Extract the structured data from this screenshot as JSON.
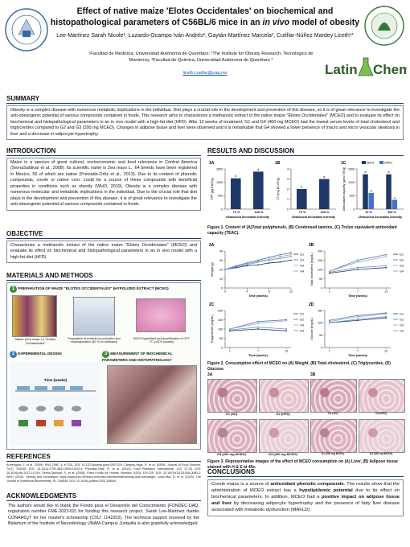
{
  "header": {
    "title_line1": "Effect of native maize 'Elotes Occidentales' on biochemical and",
    "title_line2_a": "histopathological parameters of C56BL/6 mice in an ",
    "title_line2_b": "in vivo",
    "title_line2_c": " model of obesity",
    "authors": "Lee-Martínez Sarah Nicole¹, Luzardo-Ocampo Iván Andrés², Gaytán-Martínez Marcela³, Cuéllar-Núñez Mardey Liceth¹*",
    "affiliations": "¹Facultad de Medicina, Universidad Autónoma de Querétaro; ²The Institute for Obesity Research, Tecnológico de Monterrey, ³Facultad de Química, Universidad Autónoma de Querétaro *",
    "email": "liceth.cuellar@uaq.mx",
    "logo_text": [
      "Latin",
      "Chem"
    ]
  },
  "summary": {
    "heading": "SUMMARY",
    "text": "Obesity is a complex disease with numerous metabolic implications in the individual. Diet plays a crucial role in the development and prevention of this disease, so it is of great relevance to investigate the anti-obesogenic potential of various compounds contained in foods. This research aims to characterize a methanolic extract of the native maize \"Elotes Occidentales\" (MCEO) and to evaluate its effect on biochemical and histopathological parameters in an in vivo model with a high-fat diet (HFD). After 12 weeks of treatment, G1 and G4 (400 mg MCEO) had the lowest serum levels of total cholesterol and triglycerides compared to G2 and G3 (200 mg MCEO). Changes in adipose tissue and liver were observed and it is remarkable that G4 showed a lower presence of macro and micro vesicular steatosis in liver and a decrease in adipocyte hypertrophy."
  },
  "introduction": {
    "heading": "INTRODUCTION",
    "text": "Maize is a species of great cultural, socioeconomic and food relevance in Central America (SernaSaldivar et al., 2008). Its scientific name is Zea mays L., 64 breeds have been registered in Mexico, 59 of which are native (Preciado-Ortíz et al., 2013). Due to its content of phenolic compounds, creole or native corn, could be a source of these compounds with beneficial properties in conditions such as obesity (WHO, 2019). Obesity is a complex disease with numerous molecular and metabolic implications in the individual. Due to the crucial role that diet plays in the development and prevention of this disease, it is of great relevance to investigate the anti-obesogenic potential of various compounds contained in foods."
  },
  "objective": {
    "heading": "OBJECTIVE",
    "text": "Characterize a methanolic extract of the native maize \"Elotes Occidentales\" (MCEO) and evaluate its effect on biochemical and histopathological parameters in an in vivo model with a high-fat diet (HFD)."
  },
  "methods": {
    "heading": "MATERIALS AND METHODS",
    "steps": [
      {
        "number": "1",
        "title": "PREPARATION OF MAIZE \"ELOTES OCCIDENTALES\" (HYPOLIZED EXTRACT (MCEO)"
      },
      {
        "number": "2",
        "title": "EXPERIMENTAL DESIGN"
      },
      {
        "number": "3",
        "title": "MEASUREMENT OF BIOCHEMICAL PARAMETERS AND HISTOPATHOLOGY"
      }
    ],
    "captions": [
      "Maize (Zea mays L.) \"Elotes Occidentales\"",
      "Preparation of extracts by sonication and rotaevaporation (80 % v/v methanol)",
      "MCEO lyophilized and quantification of CPT, TC y AOX capacity"
    ],
    "timeline_label": "Time (weeks)"
  },
  "references": {
    "heading": "REFERENCES",
    "text": "Armenguer, F. et al. (2009). PloS ONE, 4: e7125. DOI: 10.1371/journal.pone.0007125; Campos-Vega, R. et al. (2009). Journal of Food Science, 74(7): S59-65. DOI: 10.1111/j.1750-3841.2009.01292.x; Preciado-Ortiz, R. et al. (2013). Food Research International, 142: 27-35. DOI: 10.1016/j.fbr.2012.11.019; Serna-Saldívar, S. et al. (2008). Plant Foods for Human Nutrition, 63(3): 119-125. DOI: 10.1007/s11130-008-0080-1; WHO (2019). Obesity and overweight. https://www.who.int/news-room/fact-sheets/detail/obesity-and-overweight; Luna-Vital, D. et al. (2020). The Journal of Nutritional Biochemistry, 91: 108546. DOI: 10.1016/j.jnutbio.2020.108549"
  },
  "acknowledgments": {
    "heading": "ACKNOWLEDGMENTS",
    "text": "The authors would like to thank the Fondo para el Desarrollo del Conocimiento (FONDEC-UAQ, registration number FME-2023-02) for funding this research project. Sarah Lee-Martinez thanks CONAHCyT for her master's scholarship (CVU: 1142202). The technical support received by the Bioterium of the Institute of Neurobiology UNAM-Campus Juriquilla is also gratefully acknowledged."
  },
  "results": {
    "heading": "RESULTS AND DISCUSSION",
    "fig1": {
      "caption": "Figure 1. Content of (A)Total polyphenols, (B) Condensed tannins, (C) Trolox equivalent antioxidant capacity (TEAC).",
      "panels": [
        {
          "type": "bar",
          "label": "1A",
          "ylabel": "TPP (µg EAG/g)",
          "xlabel": "Ultrasound Sonication Intensity",
          "categories": [
            "70 %",
            "100 %"
          ],
          "ylim": [
            0,
            1500
          ],
          "yticks": [
            0,
            500,
            1000,
            1500
          ],
          "series": [
            {
              "color": "#1f3a68",
              "values": [
                1150,
                1400
              ],
              "letters": [
                "b",
                "a"
              ]
            }
          ]
        },
        {
          "type": "bar",
          "label": "1B",
          "ylabel": "CT (mg ECAT/g)",
          "xlabel": "Ultrasound Sonication Intensity",
          "categories": [
            "70 %",
            "100 %"
          ],
          "ylim": [
            0,
            4
          ],
          "yticks": [
            0,
            1,
            2,
            3,
            4
          ],
          "series": [
            {
              "color": "#1f3a68",
              "values": [
                2,
                3
              ],
              "letters": [
                "b",
                "a"
              ]
            }
          ]
        },
        {
          "type": "bar",
          "label": "1C",
          "ylabel": "Antioxidant capacity (µmol TE/g)",
          "xlabel": "Ultrasound Sonication Intensity",
          "categories": [
            "70 %",
            "100 %"
          ],
          "ylim": [
            0,
            1500
          ],
          "yticks": [
            0,
            500,
            1000,
            1500
          ],
          "series": [
            {
              "name": "ABTS",
              "color": "#1f3a68",
              "values": [
                1300,
                1300
              ],
              "letters": [
                "a",
                "a"
              ]
            },
            {
              "name": "DPPH",
              "color": "#4472c4",
              "values": [
                600,
                350
              ],
              "letters": [
                "b",
                "c"
              ]
            }
          ]
        }
      ]
    },
    "fig2": {
      "caption": "Figure 2. Consumption effect of MCEO on (A) Weight, (B) Total cholesterol, (C) Triglycerides, (D) Glucose.",
      "panels": [
        {
          "type": "line",
          "label": "2A",
          "ylabel": "Weight (g)",
          "xlabel": "Time (weeks)",
          "x": [
            0,
            2,
            4,
            6,
            8,
            10,
            12
          ],
          "xlim": [
            0,
            12
          ],
          "xticks": [
            0,
            4,
            8,
            12
          ],
          "ylim": [
            0,
            40
          ],
          "yticks": [
            0,
            10,
            20,
            30,
            40
          ],
          "series": [
            {
              "name": "G1",
              "color": "#1f3a68",
              "values": [
                20,
                22,
                24,
                25,
                27,
                28,
                30
              ]
            },
            {
              "name": "G2",
              "color": "#4472c4",
              "values": [
                20,
                24,
                27,
                30,
                33,
                36,
                38
              ]
            },
            {
              "name": "G3",
              "color": "#a5a5a5",
              "values": [
                20,
                23,
                26,
                29,
                31,
                34,
                36
              ]
            },
            {
              "name": "G4",
              "color": "#5b9bd5",
              "values": [
                20,
                23,
                25,
                28,
                30,
                32,
                34
              ]
            }
          ]
        },
        {
          "type": "line",
          "label": "2B",
          "ylabel": "Total cholesterol (mg/dL)",
          "xlabel": "Time (weeks)",
          "x": [
            1,
            7,
            13
          ],
          "xlim": [
            0,
            14
          ],
          "xticks": [
            1,
            7,
            13
          ],
          "ylim": [
            0,
            200
          ],
          "yticks": [
            0,
            50,
            100,
            150,
            200
          ],
          "series": [
            {
              "name": "G1",
              "color": "#1f3a68",
              "values": [
                80,
                100,
                110
              ]
            },
            {
              "name": "G2",
              "color": "#4472c4",
              "values": [
                90,
                150,
                180
              ]
            },
            {
              "name": "G3",
              "color": "#a5a5a5",
              "values": [
                90,
                140,
                170
              ]
            },
            {
              "name": "G4",
              "color": "#5b9bd5",
              "values": [
                85,
                110,
                120
              ]
            }
          ]
        },
        {
          "type": "line",
          "label": "2C",
          "ylabel": "Triglycerides (mg/dL)",
          "xlabel": "Time (weeks)",
          "x": [
            1,
            7,
            13
          ],
          "xlim": [
            0,
            14
          ],
          "xticks": [
            1,
            7,
            13
          ],
          "ylim": [
            0,
            200
          ],
          "yticks": [
            0,
            50,
            100,
            150,
            200
          ],
          "series": [
            {
              "name": "G1",
              "color": "#1f3a68",
              "values": [
                90,
                100,
                90
              ]
            },
            {
              "name": "G2",
              "color": "#4472c4",
              "values": [
                100,
                140,
                150
              ]
            },
            {
              "name": "G3",
              "color": "#a5a5a5",
              "values": [
                100,
                130,
                145
              ]
            },
            {
              "name": "G4",
              "color": "#5b9bd5",
              "values": [
                95,
                110,
                100
              ]
            }
          ]
        },
        {
          "type": "line",
          "label": "2D",
          "ylabel": "Glucose (mg/dL)",
          "xlabel": "Time (weeks)",
          "x": [
            1,
            7,
            13
          ],
          "xlim": [
            0,
            14
          ],
          "xticks": [
            1,
            7,
            13
          ],
          "ylim": [
            0,
            150
          ],
          "yticks": [
            0,
            50,
            100,
            150
          ],
          "series": [
            {
              "name": "G1",
              "color": "#1f3a68",
              "values": [
                100,
                110,
                120
              ]
            },
            {
              "name": "G2",
              "color": "#4472c4",
              "values": [
                110,
                130,
                140
              ]
            },
            {
              "name": "G3",
              "color": "#a5a5a5",
              "values": [
                105,
                125,
                135
              ]
            },
            {
              "name": "G4",
              "color": "#5b9bd5",
              "values": [
                100,
                115,
                125
              ]
            }
          ]
        }
      ]
    },
    "fig3": {
      "caption": "Figure 3. Representative images of the effect of MCEO consumption on (A) Liver, (B) Adipose tissue stained with H & E at 40x.",
      "label_a": "3A",
      "label_b": "3B",
      "images_a": [
        "G1 (SD)",
        "G2 (HFD)",
        "G3 (200 mg MCEO)",
        "G4 (400 mg MCEO)"
      ],
      "images_b": [
        "G1 (SD)",
        "G2 (HFD)",
        "G3 (200 mg MCEO)",
        "G4 (400 mg MCEO)"
      ]
    }
  },
  "conclusions": {
    "heading": "CONCLUSIONS",
    "parts": [
      "Creole maize is a source of ",
      "antioxidant phenolic compounds",
      ". The results show that the administration of MCEO extract has a ",
      "hypolipidemic potential",
      " due to its effect on biochemical parameters. In addition, MCEO had a ",
      "positive impact on adipose tissue and liver",
      " by decreasing adipocyte hypertrophy and the presence of fatty liver disease associated with metabolic dysfunction (MAFLD)."
    ]
  }
}
